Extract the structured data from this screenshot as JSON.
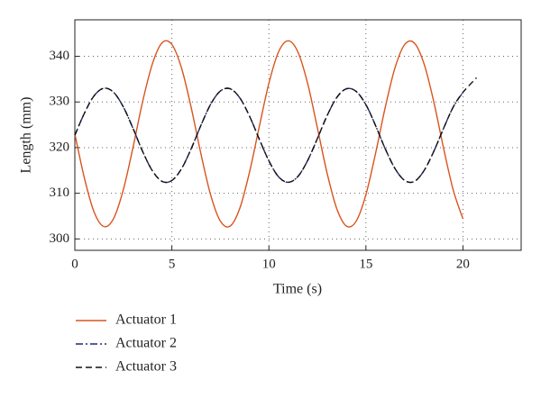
{
  "chart_data": {
    "type": "line",
    "xlabel": "Time (s)",
    "ylabel": "Length (mm)",
    "x": [
      0,
      0.5,
      1,
      1.5,
      2,
      2.5,
      3,
      3.5,
      4,
      4.5,
      5,
      5.5,
      6,
      6.5,
      7,
      7.5,
      8,
      8.5,
      9,
      9.5,
      10,
      10.5,
      11,
      11.5,
      12,
      12.5,
      13,
      13.5,
      14,
      14.5,
      15,
      15.5,
      16,
      16.5,
      17,
      17.5,
      18,
      18.5,
      19,
      19.5,
      20,
      20.7
    ],
    "series": [
      {
        "name": "Actuator 1",
        "color": "#d9541e",
        "dash": "solid",
        "values": [
          323.0,
          313.2,
          305.8,
          302.7,
          304.5,
          310.8,
          320.1,
          330.2,
          338.4,
          343.0,
          342.6,
          337.4,
          328.7,
          318.6,
          309.6,
          303.9,
          302.8,
          306.7,
          314.6,
          324.5,
          334.1,
          341.0,
          343.4,
          340.9,
          334.0,
          324.3,
          314.4,
          306.6,
          302.8,
          303.9,
          309.7,
          318.8,
          328.9,
          337.5,
          342.6,
          342.9,
          338.3,
          330.0,
          319.9,
          310.7,
          304.4,
          null
        ]
      },
      {
        "name": "Actuator 2",
        "color": "#1d2a6e",
        "dash": "dashdot",
        "values": [
          322.7,
          327.6,
          331.4,
          333.0,
          332.1,
          328.9,
          324.2,
          319.1,
          314.9,
          312.6,
          312.8,
          315.4,
          319.8,
          324.9,
          329.5,
          332.4,
          332.9,
          330.9,
          326.9,
          321.9,
          317.1,
          313.6,
          312.4,
          313.7,
          317.2,
          322.0,
          327.0,
          331.0,
          332.9,
          332.3,
          329.4,
          324.8,
          319.7,
          315.4,
          312.8,
          312.6,
          315.0,
          319.2,
          324.2,
          328.9,
          332.1,
          null
        ]
      },
      {
        "name": "Actuator 3",
        "color": "#111111",
        "dash": "dashed",
        "values": [
          322.7,
          327.6,
          331.4,
          333.0,
          332.1,
          328.9,
          324.2,
          319.1,
          314.9,
          312.6,
          312.8,
          315.4,
          319.8,
          324.9,
          329.5,
          332.4,
          332.9,
          330.9,
          326.9,
          321.9,
          317.1,
          313.6,
          312.4,
          313.7,
          317.2,
          322.0,
          327.0,
          331.0,
          332.9,
          332.3,
          329.4,
          324.8,
          319.7,
          315.4,
          312.8,
          312.6,
          315.0,
          319.2,
          324.2,
          328.9,
          332.1,
          335.3
        ]
      }
    ],
    "xlim": [
      0,
      23
    ],
    "xticks": [
      0,
      5,
      10,
      15,
      20
    ],
    "ylim": [
      297.5,
      348
    ],
    "yticks": [
      300,
      310,
      320,
      330,
      340
    ],
    "grid": true,
    "legend": "below"
  }
}
